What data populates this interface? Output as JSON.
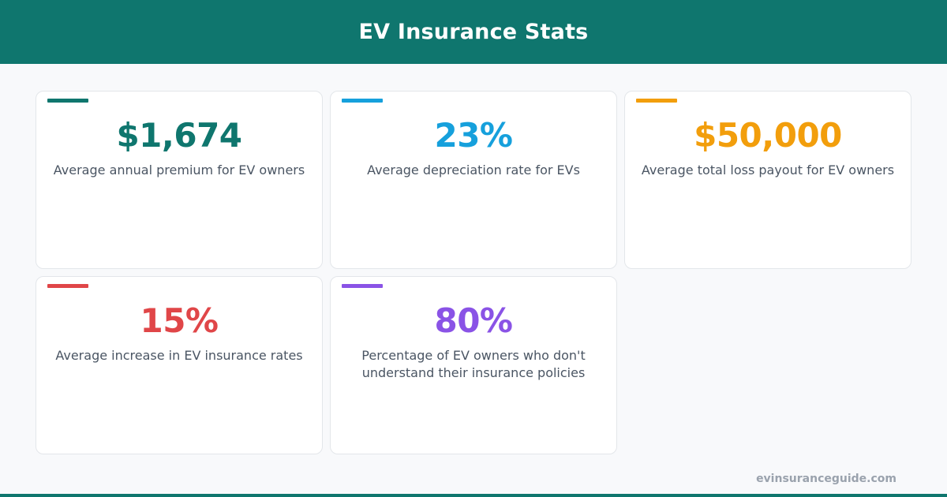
{
  "header": {
    "title": "EV Insurance Stats",
    "background": "#0f766e"
  },
  "stats": [
    {
      "value": "$1,674",
      "description": "Average annual premium for EV owners",
      "color": "#0f766e"
    },
    {
      "value": "23%",
      "description": "Average depreciation rate for EVs",
      "color": "#16a0dc"
    },
    {
      "value": "$50,000",
      "description": "Average total loss payout for EV owners",
      "color": "#f29e0c"
    },
    {
      "value": "15%",
      "description": "Average increase in EV insurance rates",
      "color": "#e04648"
    },
    {
      "value": "80%",
      "description": "Percentage of EV owners who don't understand their insurance policies",
      "color": "#8a53e6"
    }
  ],
  "footer": {
    "url": "evinsuranceguide.com"
  }
}
